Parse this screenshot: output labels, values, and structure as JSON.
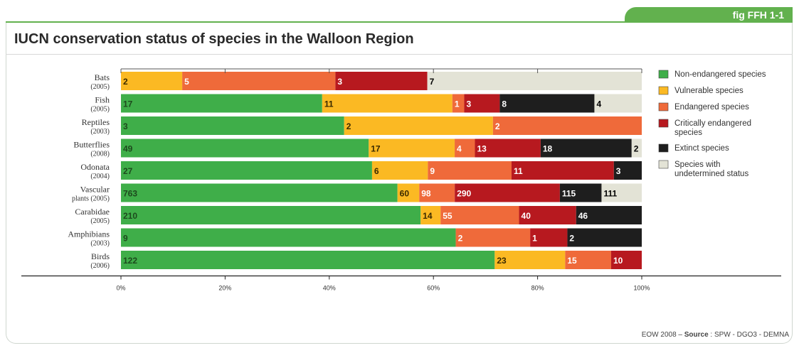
{
  "figure": {
    "tag": "fig FFH 1-1",
    "source_prefix": "EOW 2008 – ",
    "source_label": "Source",
    "source_rest": " : SPW - DGO3 - DEMNA"
  },
  "chart_data": {
    "type": "bar",
    "orientation": "horizontal",
    "stacked": true,
    "normalized": true,
    "title": "IUCN conservation status of species in the Walloon Region",
    "xlabel": "",
    "ylabel": "",
    "xlim": [
      0,
      100
    ],
    "x_ticks": [
      "0%",
      "20%",
      "40%",
      "60%",
      "80%",
      "100%"
    ],
    "grid": false,
    "legend_position": "right",
    "categories": [
      {
        "name": "Bats",
        "year": "(2005)"
      },
      {
        "name": "Fish",
        "year": "(2005)"
      },
      {
        "name": "Reptiles",
        "year": "(2003)"
      },
      {
        "name": "Butterflies",
        "year": "(2008)"
      },
      {
        "name": "Odonata",
        "year": "(2004)"
      },
      {
        "name": "Vascular",
        "year": "plants (2005)"
      },
      {
        "name": "Carabidae",
        "year": "(2005)"
      },
      {
        "name": "Amphibians",
        "year": "(2003)"
      },
      {
        "name": "Birds",
        "year": "(2006)"
      }
    ],
    "series": [
      {
        "name": "Non-endangered species",
        "color": "#3fae49",
        "label_color": "#1d4a1d",
        "values": [
          0,
          17,
          3,
          49,
          27,
          763,
          210,
          9,
          122
        ]
      },
      {
        "name": "Vulnerable species",
        "color": "#fbb923",
        "label_color": "#3a2a00",
        "values": [
          2,
          11,
          2,
          17,
          6,
          60,
          14,
          0,
          23
        ]
      },
      {
        "name": "Endangered species",
        "color": "#ef6a3a",
        "label_color": "#ffffff",
        "values": [
          5,
          1,
          2,
          4,
          9,
          98,
          55,
          2,
          15
        ]
      },
      {
        "name": "Critically endangered species",
        "color": "#b7191f",
        "label_color": "#ffffff",
        "values": [
          3,
          3,
          0,
          13,
          11,
          290,
          40,
          1,
          10
        ]
      },
      {
        "name": "Extinct species",
        "color": "#1e1e1e",
        "label_color": "#ffffff",
        "values": [
          0,
          8,
          0,
          18,
          3,
          115,
          46,
          2,
          0
        ]
      },
      {
        "name": "Species with undetermined status",
        "color": "#e3e3d6",
        "label_color": "#000000",
        "values": [
          7,
          4,
          0,
          2,
          0,
          111,
          0,
          0,
          0
        ]
      }
    ]
  }
}
